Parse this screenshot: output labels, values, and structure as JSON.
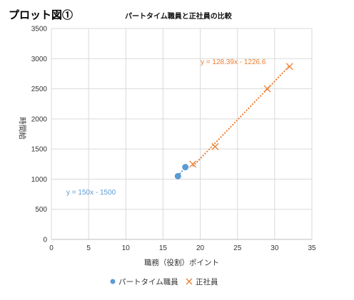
{
  "page": {
    "figure_label": "プロット図①",
    "title": "パートタイム職員と正社員の比較"
  },
  "chart_data": {
    "type": "scatter",
    "title": "パートタイム職員と正社員の比較",
    "xlabel": "職務（役割）ポイント",
    "ylabel": "時間給",
    "xlim": [
      0,
      35
    ],
    "ylim": [
      0,
      3500
    ],
    "x_ticks": [
      "0",
      "5",
      "10",
      "15",
      "20",
      "25",
      "30",
      "35"
    ],
    "y_ticks": [
      "0",
      "500",
      "1000",
      "1500",
      "2000",
      "2500",
      "3000",
      "3500"
    ],
    "grid": true,
    "legend_position": "bottom",
    "series": [
      {
        "name": "パートタイム職員",
        "marker": "circle",
        "color": "#5b9bd5",
        "points": [
          [
            17,
            1050
          ],
          [
            18,
            1200
          ]
        ],
        "trendline": {
          "slope": 150,
          "intercept": -1500,
          "x_range": [
            17,
            18
          ],
          "equation": "y = 150x - 1500"
        }
      },
      {
        "name": "正社員",
        "marker": "x",
        "color": "#ed7d31",
        "points": [
          [
            19,
            1250
          ],
          [
            22,
            1540
          ],
          [
            29,
            2500
          ],
          [
            32,
            2870
          ]
        ],
        "trendline": {
          "slope": 128.39,
          "intercept": -1226.6,
          "x_range": [
            19,
            32
          ],
          "equation": "y = 128.39x - 1226.6"
        }
      }
    ]
  }
}
